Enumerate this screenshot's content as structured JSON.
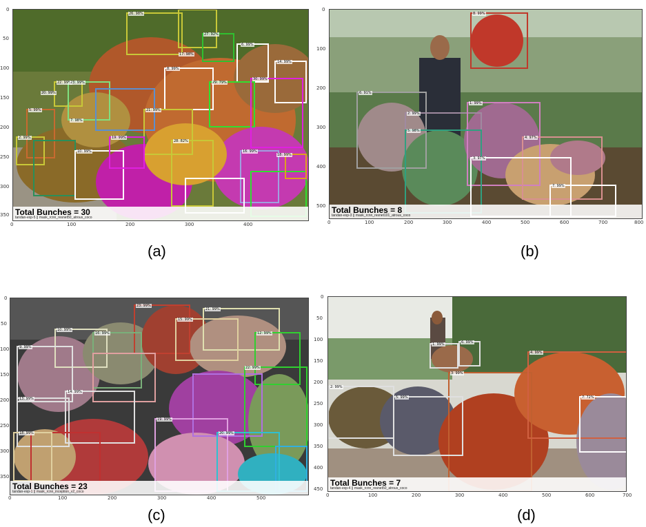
{
  "panels": [
    {
      "caption": "(a)",
      "total": "Total Bunches = 30",
      "subtitle": "tandan-exp-5 || mask_rcnn_resnet50_atrous_coco",
      "x_ticks": [
        "0",
        "100",
        "200",
        "300",
        "400"
      ],
      "y_ticks": [
        "0",
        "50",
        "100",
        "150",
        "200",
        "250",
        "300",
        "350"
      ],
      "detections": [
        "26: 98%",
        "27: 92%",
        "17: 98%",
        "8: 99%",
        "14: 99%",
        "6: 99%",
        "18: 99%",
        "22: 99%",
        "23: 99%",
        "20: 99%",
        "29: 79%",
        "30: 99%",
        "2: 99%",
        "7: 98%",
        "21: 99%",
        "5: 99%",
        "19: 99%",
        "28: 82%",
        "16: 99%",
        "10: 99%"
      ]
    },
    {
      "caption": "(b)",
      "total": "Total Bunches = 8",
      "subtitle": "tandan-exp-3 || mask_rcnn_resnet101_atrous_coco",
      "x_ticks": [
        "0",
        "100",
        "200",
        "300",
        "400",
        "500",
        "600",
        "700",
        "800"
      ],
      "y_ticks": [
        "0",
        "100",
        "200",
        "300",
        "400",
        "500"
      ],
      "detections": [
        "8: 99%",
        "6: 91%",
        "2: 99%",
        "1: 99%",
        "5: 98%",
        "4: 97%",
        "3: 97%",
        "7: 99%"
      ]
    },
    {
      "caption": "(c)",
      "total": "Total Bunches = 23",
      "subtitle": "tandan-exp-1 || mask_rcnn_inception_v2_coco",
      "x_ticks": [
        "0",
        "100",
        "200",
        "300",
        "400",
        "500"
      ],
      "y_ticks": [
        "0",
        "50",
        "100",
        "150",
        "200",
        "250",
        "300",
        "350"
      ],
      "detections": [
        "9: 99%",
        "10: 99%",
        "12: 99%",
        "13: 99%",
        "14: 99%",
        "15: 99%",
        "16: 99%",
        "18: 99%",
        "19: 99%",
        "20: 99%",
        "21: 99%",
        "22: 99%",
        "23: 99%"
      ]
    },
    {
      "caption": "(d)",
      "total": "Total Bunches = 7",
      "subtitle": "tandan-exp-4 || mask_rcnn_resnet50_atrous_coco",
      "x_ticks": [
        "0",
        "100",
        "200",
        "300",
        "400",
        "500",
        "600",
        "700"
      ],
      "y_ticks": [
        "0",
        "50",
        "100",
        "150",
        "200",
        "250",
        "300",
        "350",
        "400",
        "450"
      ],
      "detections": [
        "1: 99%",
        "6: 99%",
        "4: 99%",
        "3: 99%",
        "2: 99%",
        "5: 99%",
        "7: 72%"
      ]
    }
  ]
}
